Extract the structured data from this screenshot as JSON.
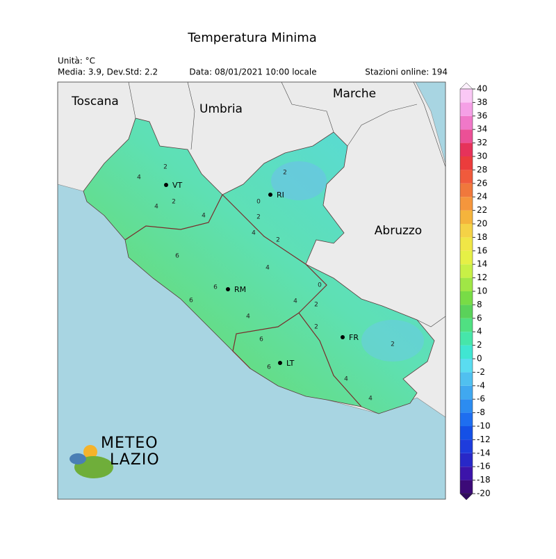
{
  "header": {
    "title": "Temperatura Minima",
    "unit": "Unità: °C",
    "stats": "Media: 3.9, Dev.Std: 2.2",
    "date": "Data: 08/01/2021 10:00 locale",
    "stations": "Stazioni online: 194"
  },
  "regions": [
    "Toscana",
    "Umbria",
    "Marche",
    "Abruzzo"
  ],
  "cities": [
    "VT",
    "RI",
    "RM",
    "FR",
    "LT"
  ],
  "contour_labels": [
    4,
    2,
    4,
    2,
    0,
    2,
    4,
    2,
    4,
    6,
    6,
    4,
    2,
    0,
    2,
    4,
    6,
    4,
    6,
    2,
    4,
    6,
    2,
    4
  ],
  "colorbar": {
    "ticks": [
      -20,
      -18,
      -16,
      -14,
      -12,
      -10,
      -8,
      -6,
      -4,
      -2,
      0,
      2,
      4,
      6,
      8,
      10,
      12,
      14,
      16,
      18,
      20,
      22,
      24,
      26,
      28,
      30,
      32,
      34,
      36,
      38,
      40
    ],
    "colors": [
      "#3c0a78",
      "#3c14aa",
      "#2828c8",
      "#1e3cdc",
      "#1450e6",
      "#1e6ef0",
      "#2c8cf0",
      "#40a8f0",
      "#50c0f0",
      "#5adcf0",
      "#40e6d2",
      "#46e6aa",
      "#50e082",
      "#5ad25a",
      "#78dc46",
      "#a0e646",
      "#c8f046",
      "#e6f046",
      "#f0e646",
      "#f5d246",
      "#f5b43c",
      "#f5963c",
      "#f0783c",
      "#f05a3c",
      "#eb3c3c",
      "#e6325a",
      "#eb5096",
      "#f078c8",
      "#f5a0e6",
      "#fac8f5"
    ]
  },
  "logo": [
    "METEO",
    "LAZIO"
  ]
}
